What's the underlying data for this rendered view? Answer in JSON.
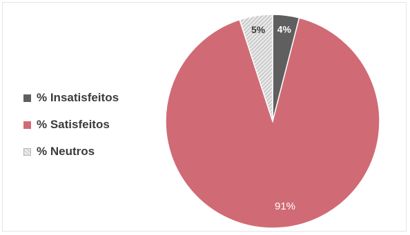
{
  "chart_data": {
    "type": "pie",
    "start_angle_deg": 0,
    "direction": "clockwise",
    "legend_position": "left",
    "slices": [
      {
        "name": "% Insatisfeitos",
        "value": 4,
        "label": "4%",
        "color": "#5f5f5f",
        "label_color": "#ffffff"
      },
      {
        "name": "% Satisfeitos",
        "value": 91,
        "label": "91%",
        "color": "#d06b75",
        "label_color": "#ffffff"
      },
      {
        "name": "% Neutros",
        "value": 5,
        "label": "5%",
        "color": "#c9c9c9",
        "label_color": "#3b3b3b"
      }
    ]
  }
}
